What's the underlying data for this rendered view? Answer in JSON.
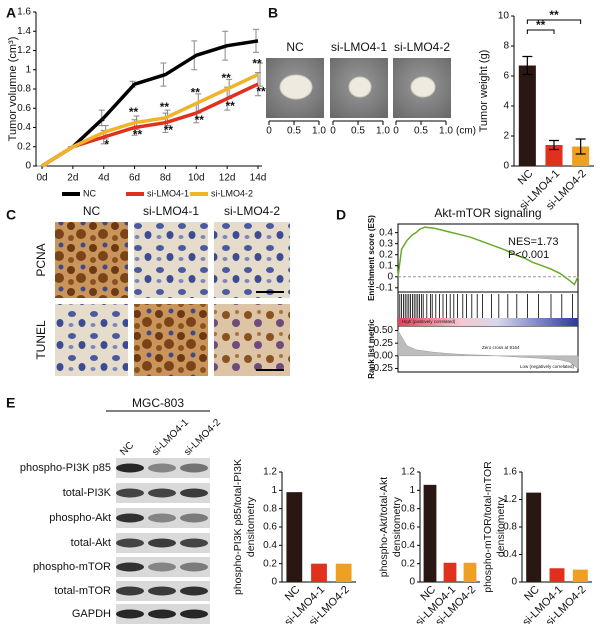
{
  "panel_labels": [
    "A",
    "B",
    "C",
    "D",
    "E"
  ],
  "chart_data": [
    {
      "type": "line",
      "ylabel": "Tumor volumne (cm³)",
      "categories": [
        "0d",
        "2d",
        "4d",
        "6d",
        "8d",
        "10d",
        "12d",
        "14d"
      ],
      "ylim": [
        0,
        1.6
      ],
      "yticks": [
        0,
        0.2,
        0.4,
        0.6,
        0.8,
        1,
        1.2,
        1.4,
        1.6
      ],
      "series": [
        {
          "name": "NC",
          "color": "#000000",
          "values": [
            0,
            0.2,
            0.5,
            0.85,
            0.95,
            1.15,
            1.25,
            1.3
          ],
          "errors": [
            0,
            0,
            0.08,
            0.03,
            0.12,
            0.15,
            0.15,
            0.12
          ],
          "significance": [
            null,
            null,
            null,
            null,
            null,
            null,
            null,
            null
          ]
        },
        {
          "name": "si-LMO4-1",
          "color": "#e0301e",
          "values": [
            0,
            0.2,
            0.3,
            0.4,
            0.45,
            0.55,
            0.7,
            0.85
          ],
          "errors": [
            0,
            0,
            0.07,
            0.08,
            0.1,
            0.1,
            0.12,
            0.12
          ],
          "significance": [
            null,
            null,
            "*",
            "**",
            "**",
            "**",
            "**",
            "**"
          ]
        },
        {
          "name": "si-LMO4-2",
          "color": "#f0b429",
          "values": [
            0,
            0.2,
            0.35,
            0.45,
            0.5,
            0.65,
            0.8,
            0.95
          ],
          "errors": [
            0,
            0,
            0.07,
            0.07,
            0.08,
            0.1,
            0.1,
            0.12
          ],
          "significance": [
            null,
            null,
            "*",
            "**",
            "**",
            "**",
            "**",
            "**"
          ]
        }
      ]
    },
    {
      "type": "bar",
      "ylabel": [
        "Tumor weight (g)"
      ],
      "categories": [
        "NC",
        "si-LMO4-1",
        "si-LMO4-2"
      ],
      "values": [
        6.7,
        1.4,
        1.3
      ],
      "errors": [
        0.6,
        0.3,
        0.5
      ],
      "colors": [
        "#2a1612",
        "#e0301e",
        "#f0a020"
      ],
      "ylim": [
        0,
        10
      ],
      "yticks": [
        0,
        2,
        4,
        6,
        8,
        10
      ],
      "annotations": [
        "**",
        "**"
      ]
    },
    {
      "type": "gsea",
      "title": "Akt-mTOR signaling",
      "ylabel": "Enrichment score (ES)",
      "color": "#6aaa2a",
      "x": [
        0,
        2,
        5,
        8,
        10,
        12,
        15,
        20,
        25,
        30,
        35,
        40,
        45,
        50,
        55,
        60,
        65,
        70,
        75,
        80,
        85,
        90,
        95,
        98,
        100
      ],
      "values": [
        0,
        0.25,
        0.33,
        0.38,
        0.4,
        0.43,
        0.45,
        0.44,
        0.42,
        0.4,
        0.38,
        0.36,
        0.33,
        0.3,
        0.27,
        0.24,
        0.2,
        0.17,
        0.13,
        0.1,
        0.07,
        0.03,
        -0.03,
        -0.07,
        0
      ],
      "xlim": [
        0,
        100
      ],
      "ylim": [
        -0.12,
        0.46
      ],
      "yticks": [
        {
          "value": 0.4,
          "label": "0.4"
        },
        {
          "value": 0.3,
          "label": "0.3"
        },
        {
          "value": 0.2,
          "label": "0.2"
        },
        {
          "value": 0.1,
          "label": "0.1"
        },
        0,
        -0.1
      ],
      "annotations": [
        "NES=1.73",
        "P<0.001"
      ],
      "hits": [
        1,
        2,
        3,
        4,
        5,
        6,
        7,
        8,
        9,
        10,
        11,
        12,
        13,
        14,
        16,
        18,
        19,
        21,
        23,
        25,
        27,
        29,
        31,
        33,
        36,
        38,
        41,
        44,
        47,
        52,
        56,
        61,
        66,
        72,
        78,
        85,
        91,
        97
      ],
      "rank_ylabel": "Rank list metric",
      "rank_x": [
        0,
        5,
        10,
        20,
        30,
        40,
        50,
        55,
        60,
        70,
        80,
        90,
        95,
        100
      ],
      "rank_values": [
        0.5,
        0.2,
        0.12,
        0.07,
        0.04,
        0.02,
        0.01,
        0,
        -0.01,
        -0.03,
        -0.05,
        -0.08,
        -0.12,
        -0.25
      ],
      "rank_ylim": [
        -0.3,
        0.55
      ],
      "rank_yticks": [
        {
          "value": 0.5,
          "label": "0.50"
        },
        {
          "value": 0.25,
          "label": "0.25"
        },
        {
          "value": 0,
          "label": "0.00"
        },
        {
          "value": -0.25,
          "label": "-0.25"
        }
      ],
      "rank_labels": [
        "High (positively correlated)",
        "Zero cross at 9164",
        "Low (negatively correlated)"
      ]
    },
    {
      "type": "bar",
      "ylabel": [
        "phospho-PI3K p85/total-PI3K",
        "densitometry"
      ],
      "categories": [
        "NC",
        "si-LMO4-1",
        "si-LMO4-2"
      ],
      "values": [
        0.98,
        0.2,
        0.2
      ],
      "colors": [
        "#2a1612",
        "#e0301e",
        "#f0a020"
      ],
      "ylim": [
        0,
        1.2
      ],
      "yticks": [
        0,
        0.2,
        0.4,
        0.6,
        0.8,
        1,
        1.2
      ]
    },
    {
      "type": "bar",
      "ylabel": [
        "phospho-Akt/total-Akt",
        "densitometry"
      ],
      "categories": [
        "NC",
        "si-LMO4-1",
        "si-LMO4-2"
      ],
      "values": [
        1.06,
        0.21,
        0.21
      ],
      "colors": [
        "#2a1612",
        "#e0301e",
        "#f0a020"
      ],
      "ylim": [
        0,
        1.2
      ],
      "yticks": [
        0,
        0.2,
        0.4,
        0.6,
        0.8,
        1,
        1.2
      ]
    },
    {
      "type": "bar",
      "ylabel": [
        "phospho-mTOR/total-mTOR",
        "densitometry"
      ],
      "categories": [
        "NC",
        "si-LMO4-1",
        "si-LMO4-2"
      ],
      "values": [
        1.3,
        0.2,
        0.18
      ],
      "colors": [
        "#2a1612",
        "#e0301e",
        "#f0a020"
      ],
      "ylim": [
        0,
        1.6
      ],
      "yticks": [
        0,
        0.4,
        0.8,
        1.2,
        1.6
      ]
    }
  ],
  "tumor_images": {
    "labels": [
      "NC",
      "si-LMO4-1",
      "si-LMO4-2"
    ],
    "ruler_ticks": [
      "0",
      "0.5",
      "1.0"
    ],
    "unit": "(cm)"
  },
  "ihc": {
    "columns": [
      "NC",
      "si-LMO4-1",
      "si-LMO4-2"
    ],
    "rows": [
      "PCNA",
      "TUNEL"
    ]
  },
  "western_blot": {
    "cell_line": "MGC-803",
    "lanes": [
      "NC",
      "si-LMO4-1",
      "si-LMO4-2"
    ],
    "rows": [
      "phospho-PI3K p85",
      "total-PI3K",
      "phospho-Akt",
      "total-Akt",
      "phospho-mTOR",
      "total-mTOR",
      "GAPDH"
    ]
  }
}
